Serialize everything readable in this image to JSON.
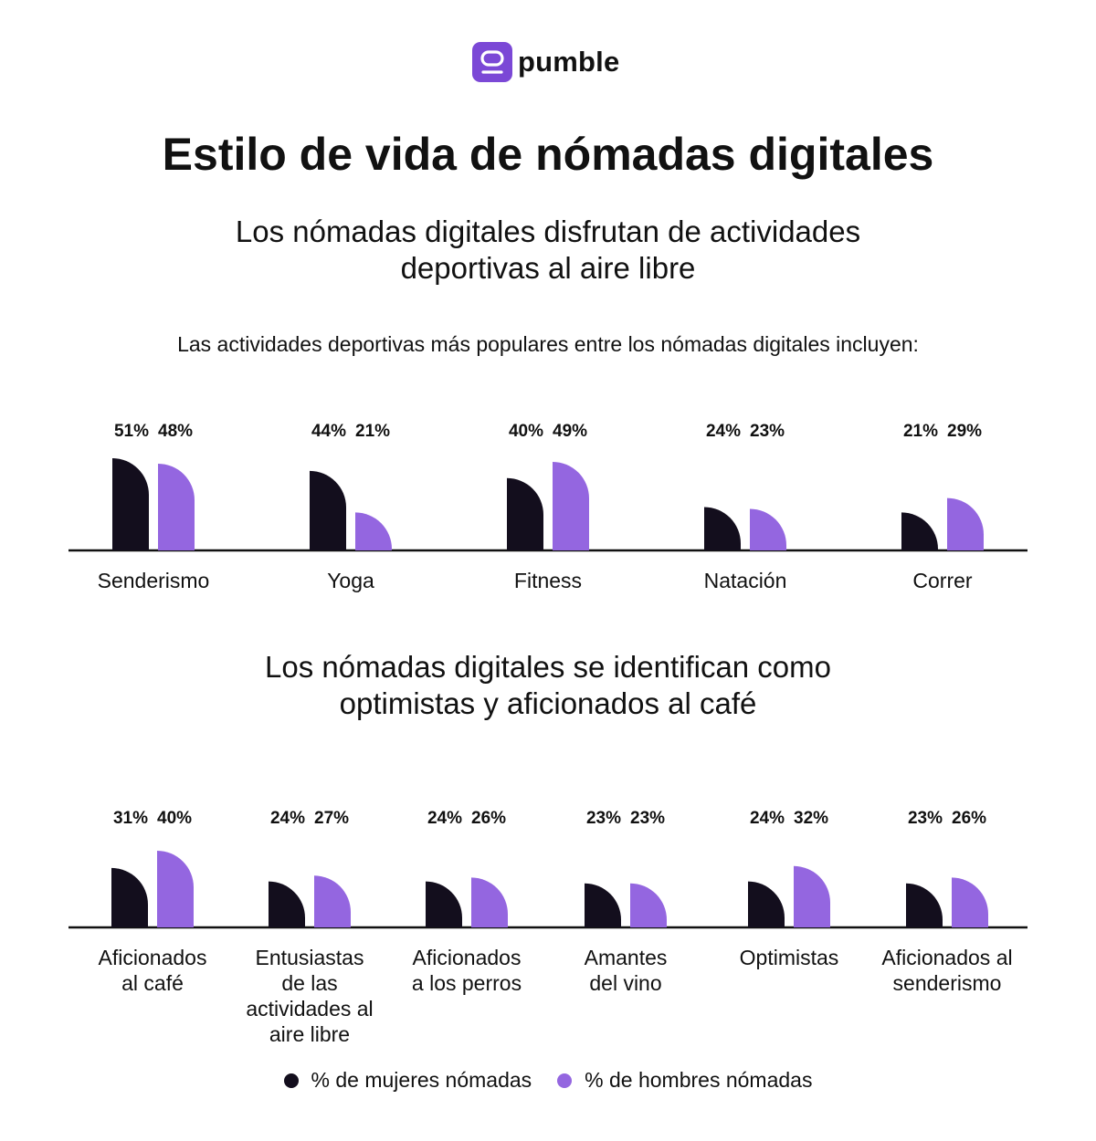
{
  "brand": {
    "name": "pumble",
    "logo_color": "#7b48d6"
  },
  "title": "Estilo de vida de nómadas digitales",
  "section1": {
    "heading_line1": "Los nómadas digitales disfrutan de actividades",
    "heading_line2": "deportivas al aire libre",
    "intro": "Las actividades deportivas más populares entre los nómadas digitales incluyen:"
  },
  "section2": {
    "heading_line1": "Los nómadas digitales se identifican como",
    "heading_line2": "optimistas y aficionados al café"
  },
  "colors": {
    "women": "#130e1d",
    "men": "#9466e0",
    "axis": "#111111"
  },
  "legend": {
    "women": "% de mujeres nómadas",
    "men": "% de hombres nómadas"
  },
  "chart_data": [
    {
      "type": "bar",
      "title": "Las actividades deportivas más populares entre los nómadas digitales incluyen:",
      "categories": [
        [
          "Senderismo"
        ],
        [
          "Yoga"
        ],
        [
          "Fitness"
        ],
        [
          "Natación"
        ],
        [
          "Correr"
        ]
      ],
      "series": [
        {
          "name": "% de mujeres nómadas",
          "values": [
            51,
            44,
            40,
            24,
            21
          ]
        },
        {
          "name": "% de hombres nómadas",
          "values": [
            48,
            21,
            49,
            23,
            29
          ]
        }
      ],
      "ylim": [
        0,
        51
      ],
      "grid": false
    },
    {
      "type": "bar",
      "title": "Los nómadas digitales se identifican como optimistas y aficionados al café",
      "categories": [
        [
          "Aficionados",
          "al café"
        ],
        [
          "Entusiastas",
          "de las",
          "actividades al",
          "aire libre"
        ],
        [
          "Aficionados",
          "a los perros"
        ],
        [
          "Amantes",
          "del vino"
        ],
        [
          "Optimistas"
        ],
        [
          "Aficionados al",
          "senderismo"
        ]
      ],
      "series": [
        {
          "name": "% de mujeres nómadas",
          "values": [
            31,
            24,
            24,
            23,
            24,
            23
          ]
        },
        {
          "name": "% de hombres nómadas",
          "values": [
            40,
            27,
            26,
            23,
            32,
            26
          ]
        }
      ],
      "ylim": [
        0,
        40
      ],
      "grid": false
    }
  ]
}
